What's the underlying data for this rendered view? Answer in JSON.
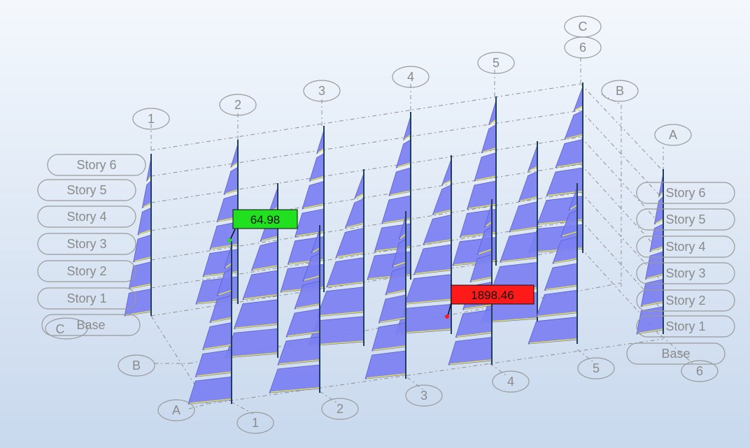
{
  "grid": {
    "numbers": [
      "1",
      "2",
      "3",
      "4",
      "5",
      "6"
    ],
    "letters": [
      "A",
      "B",
      "C"
    ]
  },
  "stories": [
    "Story 6",
    "Story 5",
    "Story 4",
    "Story 3",
    "Story 2",
    "Story 1",
    "Base"
  ],
  "callouts": [
    {
      "value": "64.98",
      "color": "#20e020"
    },
    {
      "value": "1898.46",
      "color": "#ff1a1a"
    }
  ],
  "colors": {
    "panel_fill": "#7b7ff2",
    "column_line": "#20405a",
    "story_tick": "#e7e34c",
    "background_top": "#f4f8fd",
    "background_bottom": "#c8d8ed"
  }
}
